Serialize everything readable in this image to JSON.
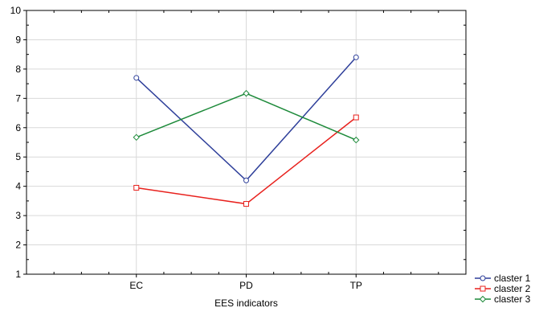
{
  "chart_data": {
    "type": "line",
    "categories": [
      "EC",
      "PD",
      "TP"
    ],
    "xlabel": "EES indicators",
    "ylabel": "",
    "ylim": [
      1,
      10
    ],
    "yticks": [
      "1",
      "2",
      "3",
      "4",
      "5",
      "6",
      "7",
      "8",
      "9",
      "10"
    ],
    "grid": true,
    "legend_position": "bottom-right outside",
    "series": [
      {
        "name": "claster 1",
        "values": [
          7.7,
          4.2,
          8.4
        ],
        "color": "#2e3f9a",
        "marker": "circle"
      },
      {
        "name": "claster 2",
        "values": [
          3.95,
          3.4,
          6.35
        ],
        "color": "#e8211d",
        "marker": "square"
      },
      {
        "name": "claster 3",
        "values": [
          5.67,
          7.17,
          5.58
        ],
        "color": "#1d8a3a",
        "marker": "diamond"
      }
    ]
  }
}
